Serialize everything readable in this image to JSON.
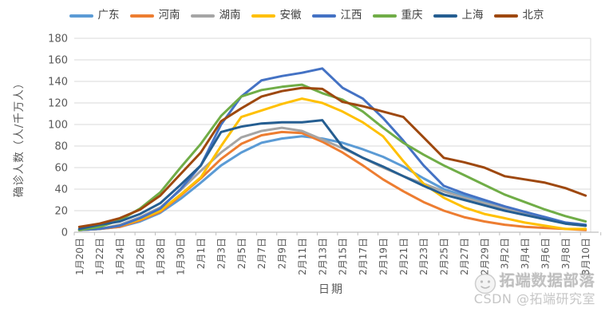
{
  "colors": {
    "axis_text": "#595959",
    "gridline": "#D9D9D9",
    "axis_line": "#BFBFBF",
    "legend_text": "#404040"
  },
  "watermark": {
    "brand": "拓端数据部落",
    "credit": "CSDN @拓端研究室"
  },
  "chart_data": {
    "type": "line",
    "title": "",
    "xlabel": "日期",
    "ylabel": "确诊人数（人/千万人）",
    "ylim": [
      0,
      180
    ],
    "ytick_step": 20,
    "grid": true,
    "legend_position": "top",
    "categories": [
      "1月20日",
      "1月22日",
      "1月24日",
      "1月26日",
      "1月28日",
      "1月30日",
      "2月1日",
      "2月3日",
      "2月5日",
      "2月7日",
      "2月9日",
      "2月11日",
      "2月13日",
      "2月15日",
      "2月17日",
      "2月19日",
      "2月21日",
      "2月23日",
      "2月25日",
      "2月27日",
      "2月29日",
      "3月2日",
      "3月4日",
      "3月6日",
      "3月8日",
      "3月10日"
    ],
    "series": [
      {
        "name": "广东",
        "color": "#5B9BD5",
        "values": [
          2,
          3,
          5,
          10,
          18,
          31,
          46,
          62,
          74,
          83,
          87,
          89,
          87,
          83,
          77,
          70,
          61,
          50,
          40,
          34,
          28,
          23,
          18,
          14,
          9,
          6
        ]
      },
      {
        "name": "河南",
        "color": "#ED7D31",
        "values": [
          2,
          3,
          5,
          11,
          19,
          34,
          50,
          68,
          82,
          90,
          93,
          92,
          84,
          74,
          62,
          49,
          38,
          28,
          20,
          14,
          10,
          7,
          5,
          4,
          3,
          2
        ]
      },
      {
        "name": "湖南",
        "color": "#A5A5A5",
        "values": [
          2,
          3,
          7,
          14,
          23,
          39,
          57,
          74,
          88,
          94,
          97,
          94,
          86,
          78,
          69,
          60,
          52,
          45,
          38,
          32,
          27,
          22,
          17,
          13,
          8,
          6
        ]
      },
      {
        "name": "安徽",
        "color": "#FFC000",
        "values": [
          2,
          3,
          6,
          12,
          20,
          35,
          51,
          80,
          107,
          113,
          119,
          124,
          120,
          112,
          102,
          89,
          66,
          45,
          32,
          23,
          17,
          13,
          9,
          6,
          3,
          3
        ]
      },
      {
        "name": "江西",
        "color": "#4472C4",
        "values": [
          2,
          3,
          6,
          13,
          22,
          40,
          62,
          100,
          126,
          141,
          145,
          148,
          152,
          134,
          124,
          106,
          85,
          62,
          43,
          36,
          30,
          24,
          19,
          14,
          9,
          7
        ]
      },
      {
        "name": "重庆",
        "color": "#70AD47",
        "values": [
          2,
          5,
          11,
          22,
          37,
          60,
          82,
          108,
          126,
          132,
          135,
          137,
          129,
          123,
          112,
          97,
          83,
          72,
          62,
          53,
          44,
          35,
          28,
          21,
          15,
          10
        ]
      },
      {
        "name": "上海",
        "color": "#255E91",
        "values": [
          3,
          7,
          10,
          17,
          27,
          44,
          62,
          93,
          98,
          101,
          102,
          102,
          104,
          79,
          69,
          61,
          52,
          43,
          35,
          30,
          25,
          20,
          16,
          12,
          8,
          6
        ]
      },
      {
        "name": "北京",
        "color": "#9E480E",
        "values": [
          5,
          8,
          13,
          21,
          34,
          54,
          74,
          103,
          115,
          126,
          131,
          134,
          133,
          121,
          117,
          112,
          107,
          88,
          69,
          65,
          60,
          52,
          49,
          46,
          41,
          34
        ]
      }
    ]
  }
}
